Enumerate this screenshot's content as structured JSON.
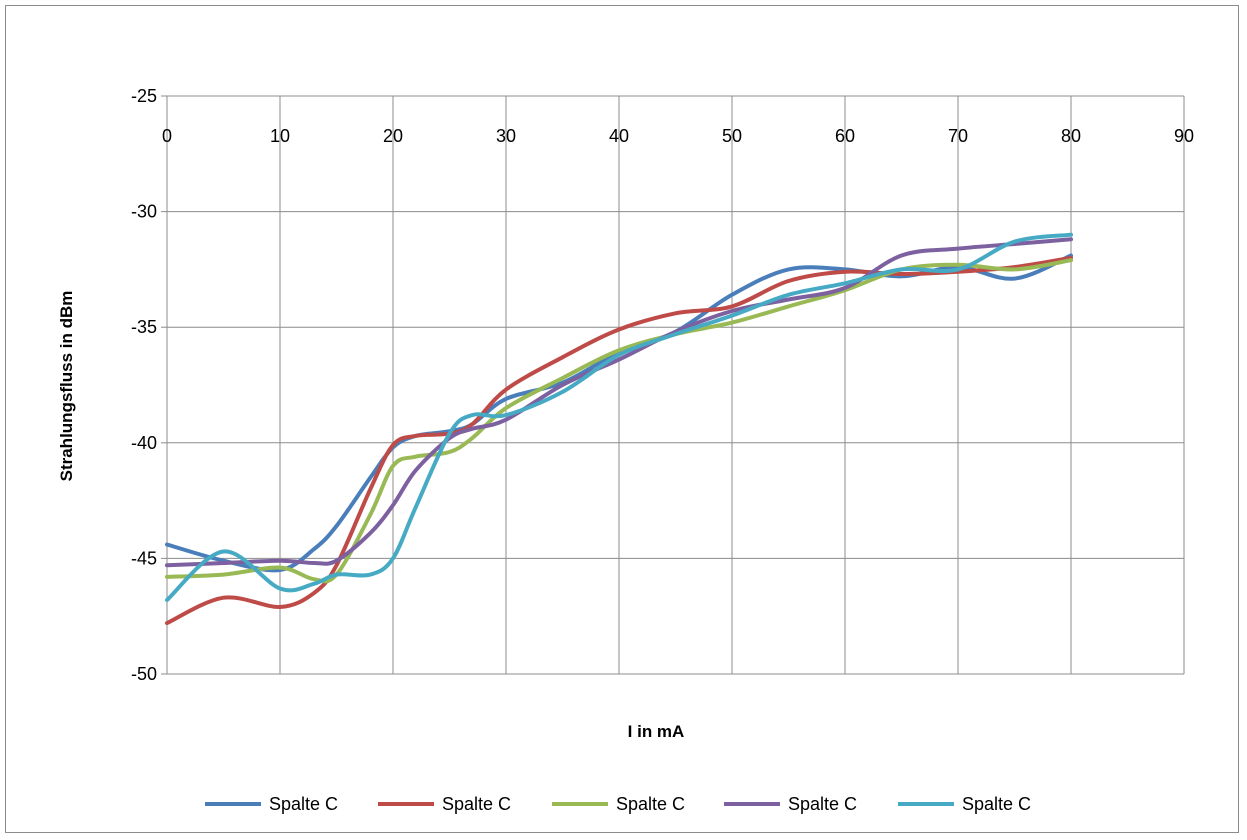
{
  "chart_data": {
    "type": "line",
    "xlabel": "I in mA",
    "ylabel": "Strahlungsfluss in dBm",
    "xlim": [
      0,
      90
    ],
    "ylim": [
      -50,
      -25
    ],
    "x_ticks": [
      0,
      10,
      20,
      30,
      40,
      50,
      60,
      70,
      80,
      90
    ],
    "y_ticks": [
      -25,
      -30,
      -35,
      -40,
      -45,
      -50
    ],
    "grid": true,
    "legend_position": "bottom",
    "x": [
      0,
      5,
      10,
      13,
      15,
      18,
      20,
      22,
      25,
      27,
      30,
      35,
      40,
      45,
      50,
      55,
      60,
      65,
      70,
      75,
      80
    ],
    "series": [
      {
        "name": "Spalte C",
        "color": "#4a7ebb",
        "values": [
          -44.4,
          -45.1,
          -45.5,
          -44.6,
          -43.6,
          -41.5,
          -40.2,
          -39.7,
          -39.5,
          -39.2,
          -38.1,
          -37.4,
          -36.1,
          -35.2,
          -33.6,
          -32.5,
          -32.5,
          -32.8,
          -32.4,
          -32.9,
          -31.9
        ]
      },
      {
        "name": "Spalte C",
        "color": "#be4b48",
        "values": [
          -47.8,
          -46.7,
          -47.1,
          -46.5,
          -45.3,
          -42.0,
          -40.1,
          -39.7,
          -39.6,
          -39.2,
          -37.7,
          -36.3,
          -35.1,
          -34.4,
          -34.1,
          -33.0,
          -32.6,
          -32.7,
          -32.6,
          -32.4,
          -32.0
        ]
      },
      {
        "name": "Spalte C",
        "color": "#98b954",
        "values": [
          -45.8,
          -45.7,
          -45.4,
          -45.9,
          -45.7,
          -43.1,
          -41.0,
          -40.6,
          -40.4,
          -39.8,
          -38.5,
          -37.2,
          -36.0,
          -35.3,
          -34.8,
          -34.1,
          -33.4,
          -32.5,
          -32.3,
          -32.5,
          -32.1
        ]
      },
      {
        "name": "Spalte C",
        "color": "#7d60a0",
        "values": [
          -45.3,
          -45.2,
          -45.1,
          -45.2,
          -45.1,
          -43.9,
          -42.7,
          -41.2,
          -39.8,
          -39.4,
          -39.0,
          -37.5,
          -36.4,
          -35.2,
          -34.3,
          -33.8,
          -33.3,
          -31.9,
          -31.6,
          -31.4,
          -31.2
        ]
      },
      {
        "name": "Spalte C",
        "color": "#46aac5",
        "values": [
          -46.8,
          -44.7,
          -46.3,
          -46.1,
          -45.7,
          -45.7,
          -45.0,
          -42.8,
          -39.6,
          -38.8,
          -38.8,
          -37.8,
          -36.2,
          -35.3,
          -34.5,
          -33.6,
          -33.1,
          -32.5,
          -32.5,
          -31.3,
          -31.0
        ]
      }
    ]
  }
}
